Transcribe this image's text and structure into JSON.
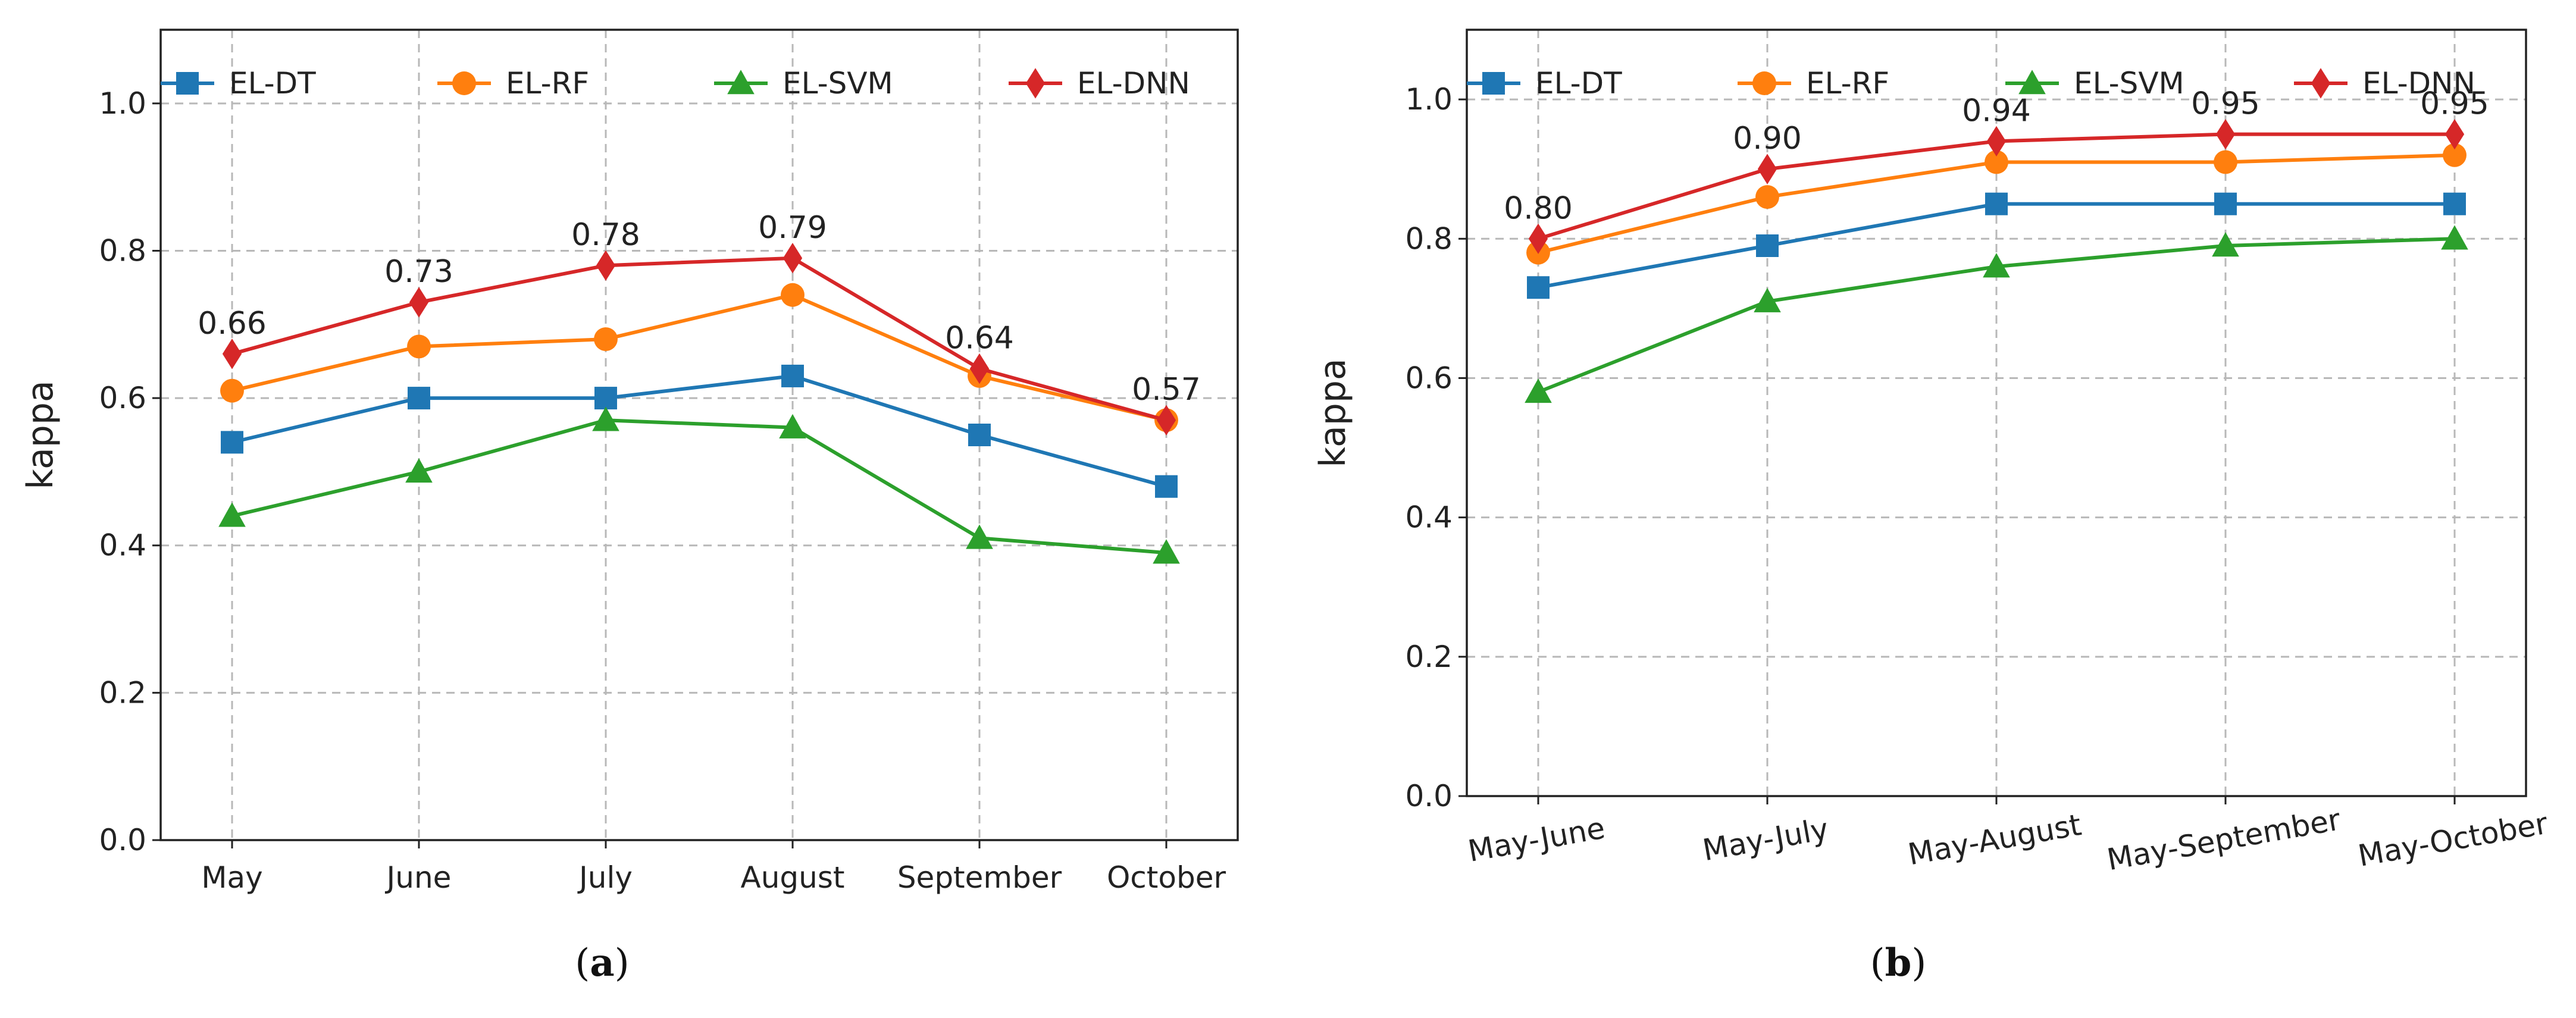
{
  "chart_data": [
    {
      "type": "line",
      "panel_label": "a",
      "xlabel": "",
      "ylabel": "kappa",
      "ylim": [
        0,
        1.1
      ],
      "yticks": [
        "0.0",
        "0.2",
        "0.4",
        "0.6",
        "0.8",
        "1.0"
      ],
      "grid": true,
      "legend": "top",
      "categories": [
        "May",
        "June",
        "July",
        "August",
        "September",
        "October"
      ],
      "series": [
        {
          "name": "EL-DT",
          "color": "#1f77b4",
          "marker": "square",
          "values": [
            0.54,
            0.6,
            0.6,
            0.63,
            0.55,
            0.48
          ]
        },
        {
          "name": "EL-RF",
          "color": "#ff7f0e",
          "marker": "circle",
          "values": [
            0.61,
            0.67,
            0.68,
            0.74,
            0.63,
            0.57
          ]
        },
        {
          "name": "EL-SVM",
          "color": "#2ca02c",
          "marker": "triangle",
          "values": [
            0.44,
            0.5,
            0.57,
            0.56,
            0.41,
            0.39
          ]
        },
        {
          "name": "EL-DNN",
          "color": "#d62728",
          "marker": "diamond",
          "values": [
            0.66,
            0.73,
            0.78,
            0.79,
            0.64,
            0.57
          ]
        }
      ],
      "annotations": [
        "0.66",
        "0.73",
        "0.78",
        "0.79",
        "0.64",
        "0.57"
      ]
    },
    {
      "type": "line",
      "panel_label": "b",
      "xlabel": "",
      "ylabel": "kappa",
      "ylim": [
        0,
        1.1
      ],
      "yticks": [
        "0.0",
        "0.2",
        "0.4",
        "0.6",
        "0.8",
        "1.0"
      ],
      "grid": true,
      "legend": "top",
      "categories": [
        "May-June",
        "May-July",
        "May-August",
        "May-September",
        "May-October"
      ],
      "series": [
        {
          "name": "EL-DT",
          "color": "#1f77b4",
          "marker": "square",
          "values": [
            0.73,
            0.79,
            0.85,
            0.85,
            0.85
          ]
        },
        {
          "name": "EL-RF",
          "color": "#ff7f0e",
          "marker": "circle",
          "values": [
            0.78,
            0.86,
            0.91,
            0.91,
            0.92
          ]
        },
        {
          "name": "EL-SVM",
          "color": "#2ca02c",
          "marker": "triangle",
          "values": [
            0.58,
            0.71,
            0.76,
            0.79,
            0.8
          ]
        },
        {
          "name": "EL-DNN",
          "color": "#d62728",
          "marker": "diamond",
          "values": [
            0.8,
            0.9,
            0.94,
            0.95,
            0.95
          ]
        }
      ],
      "annotations": [
        "0.80",
        "0.90",
        "0.94",
        "0.95",
        "0.95"
      ]
    }
  ]
}
